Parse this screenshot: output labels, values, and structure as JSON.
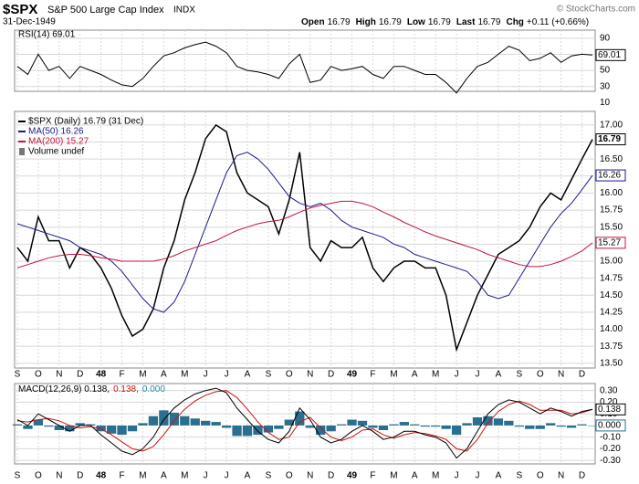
{
  "header": {
    "symbol": "$SPX",
    "name": "S&P 500 Large Cap Index",
    "exchange": "INDX",
    "date": "31-Dec-1949",
    "copyright": "© StockCharts.com",
    "quote": [
      {
        "label": "Open",
        "value": 16.79
      },
      {
        "label": "High",
        "value": 16.79
      },
      {
        "label": "Low",
        "value": 16.79
      },
      {
        "label": "Last",
        "value": 16.79
      },
      {
        "label": "Chg",
        "value": "+0.11 (+0.66%)"
      }
    ]
  },
  "chart_data": [
    {
      "type": "line",
      "title": "RSI(14) 69.01",
      "ylim": [
        24,
        100
      ],
      "yticks": [
        90,
        70,
        50,
        30,
        10
      ],
      "grid": true,
      "categories": [
        "S",
        null,
        "O",
        null,
        "N",
        null,
        "D",
        null,
        "48",
        null,
        "F",
        null,
        "M",
        null,
        "A",
        null,
        "M",
        null,
        "J",
        null,
        "J",
        null,
        "A",
        null,
        "S",
        null,
        "O",
        null,
        "N",
        null,
        "D",
        null,
        "49",
        null,
        "F",
        null,
        "M",
        null,
        "A",
        null,
        "M",
        null,
        "J",
        null,
        "J",
        null,
        "A",
        null,
        "S",
        null,
        "O",
        null,
        "N",
        null,
        "D",
        null
      ],
      "series": [
        {
          "color": "#000000",
          "tag": "69.01",
          "values": [
            55,
            45,
            70,
            50,
            55,
            40,
            55,
            50,
            45,
            38,
            32,
            30,
            40,
            55,
            68,
            72,
            78,
            82,
            85,
            80,
            72,
            55,
            50,
            48,
            45,
            40,
            58,
            70,
            35,
            38,
            55,
            50,
            52,
            55,
            45,
            40,
            55,
            55,
            50,
            45,
            45,
            35,
            22,
            40,
            55,
            60,
            70,
            80,
            75,
            62,
            65,
            72,
            60,
            68,
            70,
            69.01
          ]
        }
      ]
    },
    {
      "type": "line",
      "ylim": [
        13.43,
        17.2
      ],
      "grid": true,
      "yticks": [
        {
          "value": 17,
          "label": "17.00"
        },
        16.75,
        {
          "value": 16.5,
          "label": "16.50"
        },
        16.25,
        {
          "value": 16,
          "label": "16.00"
        },
        15.75,
        {
          "value": 15.5,
          "label": "15.50"
        },
        15.25,
        {
          "value": 15,
          "label": "15.00"
        },
        14.75,
        {
          "value": 14.5,
          "label": "14.50"
        },
        14.25,
        {
          "value": 14,
          "label": "14.00"
        },
        13.75,
        {
          "value": 13.5,
          "label": "13.50"
        }
      ],
      "categories": [
        "S",
        null,
        "O",
        null,
        "N",
        null,
        "D",
        null,
        "48",
        null,
        "F",
        null,
        "M",
        null,
        "A",
        null,
        "M",
        null,
        "J",
        null,
        "J",
        null,
        "A",
        null,
        "S",
        null,
        "O",
        null,
        "N",
        null,
        "D",
        null,
        "49",
        null,
        "F",
        null,
        "M",
        null,
        "A",
        null,
        "M",
        null,
        "J",
        null,
        "J",
        null,
        "A",
        null,
        "S",
        null,
        "O",
        null,
        "N",
        null,
        "D",
        null
      ],
      "series": [
        {
          "name": "$SPX (Daily) 16.79 (31 Dec)",
          "color": "#000000",
          "tag": "16.79",
          "values": [
            15.2,
            15.0,
            15.65,
            15.3,
            15.3,
            14.9,
            15.2,
            15.1,
            14.9,
            14.6,
            14.2,
            13.9,
            14.0,
            14.3,
            14.9,
            15.3,
            15.9,
            16.3,
            16.8,
            17.0,
            16.9,
            16.3,
            16.0,
            15.9,
            15.8,
            15.4,
            15.9,
            16.6,
            15.2,
            15.0,
            15.3,
            15.2,
            15.2,
            15.35,
            14.9,
            14.7,
            14.9,
            15.0,
            15.0,
            14.9,
            14.9,
            14.5,
            13.7,
            14.1,
            14.5,
            14.8,
            15.1,
            15.2,
            15.3,
            15.5,
            15.8,
            16.0,
            15.9,
            16.2,
            16.5,
            16.79
          ]
        },
        {
          "name": "MA(50) 16.26",
          "color": "#1a1a8c",
          "tag": "16.26",
          "values": [
            15.55,
            15.5,
            15.45,
            15.4,
            15.35,
            15.3,
            15.2,
            15.15,
            15.1,
            15.0,
            14.85,
            14.65,
            14.45,
            14.3,
            14.25,
            14.4,
            14.7,
            15.1,
            15.5,
            15.9,
            16.3,
            16.55,
            16.6,
            16.5,
            16.35,
            16.15,
            15.95,
            15.85,
            15.8,
            15.85,
            15.75,
            15.6,
            15.5,
            15.45,
            15.4,
            15.35,
            15.25,
            15.2,
            15.1,
            15.05,
            15.0,
            14.95,
            14.9,
            14.85,
            14.7,
            14.5,
            14.45,
            14.5,
            14.75,
            15.0,
            15.25,
            15.5,
            15.7,
            15.85,
            16.05,
            16.26
          ]
        },
        {
          "name": "MA(200) 15.27",
          "color": "#c0143c",
          "tag": "15.27",
          "values": [
            14.9,
            14.95,
            15.0,
            15.05,
            15.08,
            15.1,
            15.1,
            15.08,
            15.05,
            15.03,
            15.0,
            15.0,
            15.0,
            15.0,
            15.03,
            15.08,
            15.15,
            15.2,
            15.25,
            15.3,
            15.38,
            15.45,
            15.5,
            15.55,
            15.58,
            15.6,
            15.65,
            15.72,
            15.78,
            15.82,
            15.85,
            15.88,
            15.88,
            15.85,
            15.8,
            15.72,
            15.65,
            15.57,
            15.5,
            15.43,
            15.37,
            15.32,
            15.27,
            15.22,
            15.17,
            15.1,
            15.05,
            15.0,
            14.95,
            14.92,
            14.92,
            14.95,
            15.0,
            15.07,
            15.15,
            15.27
          ]
        }
      ],
      "extra_legend": "Volume undef"
    },
    {
      "type": "macd",
      "ylim": [
        -0.33,
        0.36
      ],
      "grid": true,
      "yticks": [
        {
          "value": 0.3,
          "label": "0.30"
        },
        {
          "value": 0.2,
          "label": "0.20"
        },
        {
          "value": 0.1,
          "label": "0.10"
        },
        {
          "value": -0.1,
          "label": "-0.10"
        },
        {
          "value": -0.2,
          "label": "-0.20"
        },
        {
          "value": -0.3,
          "label": "-0.30"
        }
      ],
      "legend": [
        {
          "text": "MACD(12,26,9) 0.138,",
          "color": "#000000"
        },
        {
          "text": "0.138,",
          "color": "#d01010"
        },
        {
          "text": "0.000",
          "color": "#1f8fb0"
        }
      ],
      "categories": [
        "S",
        null,
        "O",
        null,
        "N",
        null,
        "D",
        null,
        "48",
        null,
        "F",
        null,
        "M",
        null,
        "A",
        null,
        "M",
        null,
        "J",
        null,
        "J",
        null,
        "A",
        null,
        "S",
        null,
        "O",
        null,
        "N",
        null,
        "D",
        null,
        "49",
        null,
        "F",
        null,
        "M",
        null,
        "A",
        null,
        "M",
        null,
        "J",
        null,
        "J",
        null,
        "A",
        null,
        "S",
        null,
        "O",
        null,
        "N",
        null,
        "D",
        null
      ],
      "series": [
        {
          "kind": "bar",
          "color": "#2a6f8f",
          "tag": "0.000",
          "values": [
            0.01,
            -0.03,
            0.05,
            -0.01,
            -0.04,
            -0.05,
            0.02,
            0.01,
            -0.05,
            -0.07,
            -0.08,
            -0.05,
            0.02,
            0.08,
            0.13,
            0.11,
            0.08,
            0.06,
            0.04,
            0.03,
            -0.02,
            -0.09,
            -0.09,
            -0.08,
            -0.06,
            -0.03,
            0.05,
            0.12,
            -0.02,
            -0.08,
            -0.05,
            0.01,
            0.05,
            0.04,
            -0.02,
            -0.04,
            0.01,
            0.03,
            0.01,
            -0.01,
            -0.01,
            -0.03,
            -0.08,
            0.02,
            0.07,
            0.08,
            0.06,
            0.04,
            -0.01,
            -0.03,
            -0.03,
            0.02,
            -0.01,
            -0.02,
            0.01,
            0.0
          ]
        },
        {
          "kind": "line",
          "color": "#d01010",
          "values": [
            0.04,
            0.03,
            0.05,
            0.06,
            0.04,
            0.0,
            -0.02,
            -0.01,
            -0.03,
            -0.08,
            -0.14,
            -0.2,
            -0.22,
            -0.18,
            -0.08,
            0.04,
            0.14,
            0.21,
            0.26,
            0.29,
            0.3,
            0.24,
            0.14,
            0.03,
            -0.06,
            -0.12,
            -0.1,
            0.03,
            0.07,
            -0.02,
            -0.1,
            -0.13,
            -0.1,
            -0.04,
            -0.03,
            -0.08,
            -0.11,
            -0.08,
            -0.06,
            -0.07,
            -0.09,
            -0.12,
            -0.2,
            -0.22,
            -0.12,
            0.02,
            0.12,
            0.18,
            0.21,
            0.18,
            0.13,
            0.13,
            0.13,
            0.1,
            0.11,
            0.138
          ]
        },
        {
          "kind": "line",
          "color": "#000000",
          "tag": "0.138",
          "values": [
            0.05,
            0.0,
            0.1,
            0.05,
            0.0,
            -0.05,
            0.0,
            0.0,
            -0.08,
            -0.15,
            -0.22,
            -0.25,
            -0.2,
            -0.1,
            0.05,
            0.15,
            0.22,
            0.27,
            0.3,
            0.32,
            0.28,
            0.15,
            0.05,
            -0.05,
            -0.12,
            -0.15,
            -0.05,
            0.15,
            0.05,
            -0.1,
            -0.15,
            -0.12,
            -0.05,
            0.0,
            -0.05,
            -0.12,
            -0.1,
            -0.05,
            -0.05,
            -0.08,
            -0.1,
            -0.15,
            -0.28,
            -0.2,
            -0.05,
            0.1,
            0.18,
            0.22,
            0.2,
            0.15,
            0.1,
            0.15,
            0.12,
            0.08,
            0.12,
            0.138
          ]
        }
      ]
    }
  ]
}
